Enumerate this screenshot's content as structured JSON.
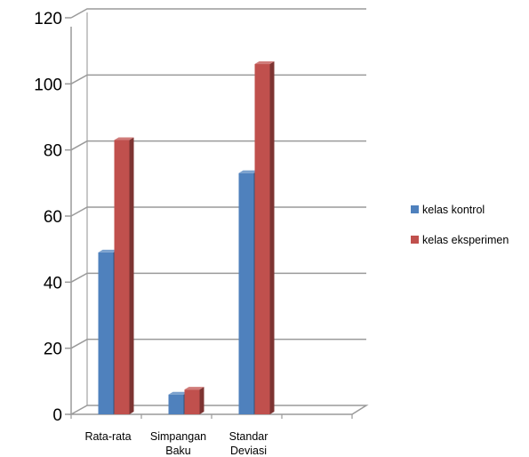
{
  "chart_data": {
    "type": "bar",
    "categories": [
      [
        "Rata-rata"
      ],
      [
        "Simpangan",
        "Baku"
      ],
      [
        "Standar",
        "Deviasi"
      ],
      [
        ""
      ]
    ],
    "series": [
      {
        "name": "kelas kontrol",
        "values": [
          49,
          6,
          73,
          null
        ],
        "color": "#4F81BD"
      },
      {
        "name": "kelas eksperimen",
        "values": [
          83,
          7.5,
          106,
          null
        ],
        "color": "#C0504D"
      }
    ],
    "ylim": [
      0,
      120
    ],
    "yticks": [
      0,
      20,
      40,
      60,
      80,
      100,
      120
    ],
    "grid": true,
    "legend": "right",
    "style": "3d-clustered-column"
  }
}
